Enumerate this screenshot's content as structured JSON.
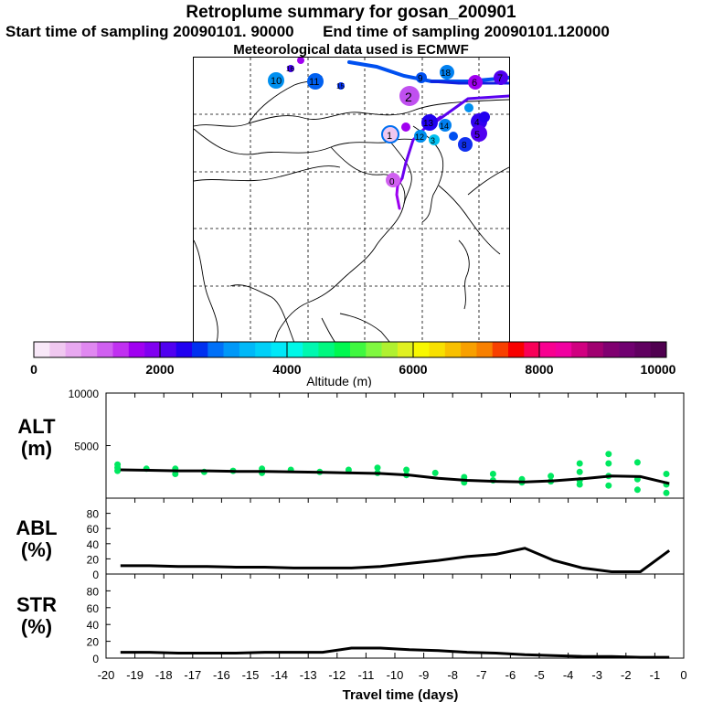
{
  "header": {
    "title": "Retroplume summary for gosan_200901",
    "start": "Start time of sampling 20090101. 90000",
    "end": "End time of sampling 20090101.120000",
    "met": "Meteorological data used is ECMWF"
  },
  "colorbar": {
    "ticks": [
      "0",
      "2000",
      "4000",
      "6000",
      "8000",
      "10000"
    ],
    "label": "Altitude (m)",
    "colors": [
      "#f8e8f8",
      "#f0c8f0",
      "#e8a8f0",
      "#e088f0",
      "#d060f0",
      "#c030f0",
      "#a000f0",
      "#8000f0",
      "#5000f0",
      "#2000f0",
      "#0030f0",
      "#0070f8",
      "#0098f8",
      "#00b8f8",
      "#00d0f8",
      "#00e8f8",
      "#00f8e8",
      "#00f8b0",
      "#00f880",
      "#00f850",
      "#40f840",
      "#80f840",
      "#b0f030",
      "#e0f020",
      "#f8f800",
      "#f8e000",
      "#f8c000",
      "#f8a000",
      "#f88000",
      "#f84000",
      "#f80000",
      "#f80058",
      "#f80090",
      "#f000a0",
      "#d00080",
      "#a00070",
      "#800070",
      "#700070",
      "#600060",
      "#500050"
    ]
  },
  "map_labels": {
    "p1": "1",
    "p2": "2",
    "p4": "4",
    "p5": "5",
    "p6": "6",
    "p7": "7",
    "p8": "8",
    "p9": "9",
    "p10": "10",
    "p11": "11",
    "p13": "13",
    "p14": "14",
    "p15": "15",
    "p16": "16",
    "p17": "17",
    "p18": "18",
    "p12": "12",
    "p3": "3"
  },
  "chart_data": [
    {
      "type": "line",
      "name": "ALT",
      "ylabel": "ALT\n(m)",
      "ylim": [
        0,
        10000
      ],
      "yticks": [
        "10000",
        "5000"
      ],
      "x": [
        -19.5,
        -18.5,
        -17.5,
        -16.5,
        -15.5,
        -14.5,
        -13.5,
        -12.5,
        -11.5,
        -10.5,
        -9.5,
        -8.5,
        -7.5,
        -6.5,
        -5.5,
        -4.5,
        -3.5,
        -2.5,
        -1.5,
        -0.5
      ],
      "values": [
        2700,
        2650,
        2600,
        2600,
        2550,
        2550,
        2500,
        2450,
        2400,
        2350,
        2200,
        1900,
        1700,
        1600,
        1550,
        1650,
        1850,
        2100,
        2050,
        1400
      ],
      "scatter_color": "#00e860",
      "scatter": [
        [
          -19.6,
          3200
        ],
        [
          -19.6,
          2900
        ],
        [
          -19.6,
          2600
        ],
        [
          -18.6,
          2800
        ],
        [
          -17.6,
          2300
        ],
        [
          -17.6,
          2800
        ],
        [
          -16.6,
          2500
        ],
        [
          -15.6,
          2600
        ],
        [
          -14.6,
          2400
        ],
        [
          -14.6,
          2800
        ],
        [
          -13.6,
          2700
        ],
        [
          -12.6,
          2500
        ],
        [
          -11.6,
          2700
        ],
        [
          -10.6,
          2400
        ],
        [
          -10.6,
          2900
        ],
        [
          -9.6,
          2700
        ],
        [
          -9.6,
          2200
        ],
        [
          -8.6,
          2400
        ],
        [
          -7.6,
          2000
        ],
        [
          -7.6,
          1500
        ],
        [
          -6.6,
          2300
        ],
        [
          -6.6,
          1700
        ],
        [
          -5.6,
          1800
        ],
        [
          -5.6,
          1500
        ],
        [
          -4.6,
          1600
        ],
        [
          -4.6,
          2100
        ],
        [
          -3.6,
          1300
        ],
        [
          -3.6,
          1700
        ],
        [
          -3.6,
          2500
        ],
        [
          -3.6,
          3300
        ],
        [
          -2.6,
          1200
        ],
        [
          -2.6,
          2100
        ],
        [
          -2.6,
          3300
        ],
        [
          -2.6,
          4200
        ],
        [
          -1.6,
          800
        ],
        [
          -1.6,
          1800
        ],
        [
          -1.6,
          3400
        ],
        [
          -0.6,
          500
        ],
        [
          -0.6,
          1300
        ],
        [
          -0.6,
          2300
        ]
      ]
    },
    {
      "type": "line",
      "name": "ABL",
      "ylabel": "ABL\n(%)",
      "ylim": [
        0,
        100
      ],
      "yticks": [
        "80",
        "60",
        "40",
        "20",
        "0"
      ],
      "x": [
        -19.5,
        -18.5,
        -17.5,
        -16.5,
        -15.5,
        -14.5,
        -13.5,
        -12.5,
        -11.5,
        -10.5,
        -9.5,
        -8.5,
        -7.5,
        -6.5,
        -5.5,
        -4.5,
        -3.5,
        -2.5,
        -1.5,
        -0.5
      ],
      "values": [
        11,
        11,
        10,
        10,
        9,
        9,
        8,
        8,
        8,
        10,
        14,
        18,
        23,
        26,
        34,
        18,
        8,
        3,
        3,
        31
      ]
    },
    {
      "type": "line",
      "name": "STR",
      "ylabel": "STR\n(%)",
      "ylim": [
        0,
        100
      ],
      "yticks": [
        "80",
        "60",
        "40",
        "20",
        "0"
      ],
      "x": [
        -19.5,
        -18.5,
        -17.5,
        -16.5,
        -15.5,
        -14.5,
        -13.5,
        -12.5,
        -11.5,
        -10.5,
        -9.5,
        -8.5,
        -7.5,
        -6.5,
        -5.5,
        -4.5,
        -3.5,
        -2.5,
        -1.5,
        -0.5
      ],
      "values": [
        7,
        7,
        6,
        6,
        6,
        7,
        7,
        7,
        12,
        12,
        10,
        9,
        7,
        6,
        4,
        3,
        2,
        2,
        1,
        1
      ]
    }
  ],
  "x_axis": {
    "label": "Travel time (days)",
    "ticks": [
      "-20",
      "-19",
      "-18",
      "-17",
      "-16",
      "-15",
      "-14",
      "-13",
      "-12",
      "-11",
      "-10",
      "-9",
      "-8",
      "-7",
      "-6",
      "-5",
      "-4",
      "-3",
      "-2",
      "-1",
      "0"
    ],
    "xlim": [
      -20,
      0
    ]
  }
}
